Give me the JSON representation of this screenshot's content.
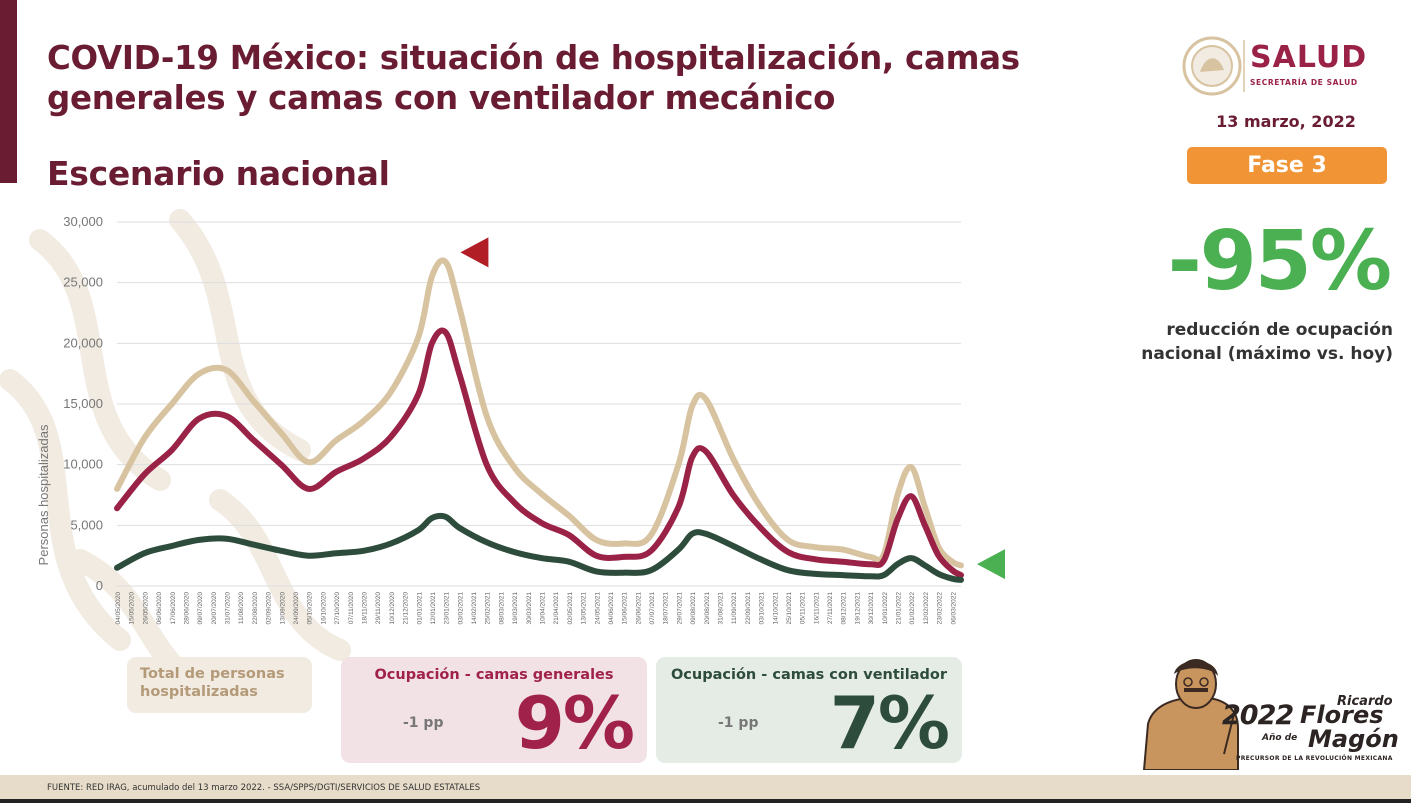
{
  "header": {
    "title_line1": "COVID-19 México: situación de hospitalización, camas",
    "title_line2": "generales y camas con ventilador mecánico",
    "subtitle": "Escenario nacional"
  },
  "logo": {
    "name": "SALUD",
    "subtitle": "SECRETARÍA DE SALUD",
    "icon": "mexican-coat-of-arms-icon"
  },
  "date": "13 marzo, 2022",
  "phase_badge": {
    "label": "Fase 3",
    "color": "#f19436"
  },
  "kpi": {
    "value": "-95%",
    "note_line1": "reducción de ocupación",
    "note_line2": "nacional (máximo vs. hoy)",
    "color": "#4bb052"
  },
  "cards": {
    "total": {
      "label_line1": "Total de personas",
      "label_line2": "hospitalizadas"
    },
    "general": {
      "title": "Ocupación - camas generales",
      "delta": "-1 pp",
      "value": "9%"
    },
    "ventilator": {
      "title": "Ocupación - camas con ventilador",
      "delta": "-1 pp",
      "value": "7%"
    }
  },
  "commemorative": {
    "year": "2022",
    "ano_de": "Año de",
    "first_name": "Ricardo",
    "surname1": "Flores",
    "surname2": "Magón",
    "subtitle": "PRECURSOR DE LA REVOLUCIÓN MEXICANA"
  },
  "footer": {
    "source": "FUENTE: RED IRAG, acumulado del 13 marzo 2022. -  SSA/SPPS/DGTI/SERVICIOS DE SALUD ESTATALES"
  },
  "chart_data": {
    "type": "line",
    "title": "",
    "ylabel": "Personas hospitalizadas",
    "xlabel": "",
    "ylim": [
      0,
      30000
    ],
    "y_ticks": [
      "0",
      "5,000",
      "10,000",
      "15,000",
      "20,000",
      "25,000",
      "30,000"
    ],
    "grid": true,
    "legend": "none",
    "x_tick_labels": [
      "04/05/2020",
      "15/05/2020",
      "26/05/2020",
      "06/06/2020",
      "17/06/2020",
      "28/06/2020",
      "09/07/2020",
      "20/07/2020",
      "31/07/2020",
      "11/08/2020",
      "22/08/2020",
      "02/09/2020",
      "13/09/2020",
      "24/09/2020",
      "05/10/2020",
      "16/10/2020",
      "27/10/2020",
      "07/11/2020",
      "18/11/2020",
      "29/11/2020",
      "10/12/2020",
      "21/12/2020",
      "01/01/2021",
      "12/01/2021",
      "23/01/2021",
      "03/02/2021",
      "14/02/2021",
      "25/02/2021",
      "08/03/2021",
      "19/03/2021",
      "30/03/2021",
      "10/04/2021",
      "21/04/2021",
      "02/05/2021",
      "13/05/2021",
      "24/05/2021",
      "04/06/2021",
      "15/06/2021",
      "26/06/2021",
      "07/07/2021",
      "18/07/2021",
      "29/07/2021",
      "09/08/2021",
      "20/08/2021",
      "31/08/2021",
      "11/09/2021",
      "22/09/2021",
      "03/10/2021",
      "14/10/2021",
      "25/10/2021",
      "05/11/2021",
      "16/11/2021",
      "27/11/2021",
      "08/12/2021",
      "19/12/2021",
      "30/12/2021",
      "10/01/2022",
      "21/01/2022",
      "01/02/2022",
      "12/02/2022",
      "23/02/2022",
      "06/03/2022"
    ],
    "x": [
      "04/05/2020",
      "26/05/2020",
      "17/06/2020",
      "09/07/2020",
      "31/07/2020",
      "22/08/2020",
      "13/09/2020",
      "05/10/2020",
      "27/10/2020",
      "18/11/2020",
      "10/12/2020",
      "01/01/2021",
      "12/01/2021",
      "23/01/2021",
      "03/02/2021",
      "25/02/2021",
      "19/03/2021",
      "10/04/2021",
      "02/05/2021",
      "24/05/2021",
      "15/06/2021",
      "07/07/2021",
      "29/07/2021",
      "09/08/2021",
      "20/08/2021",
      "11/09/2021",
      "03/10/2021",
      "25/10/2021",
      "16/11/2021",
      "08/12/2021",
      "30/12/2021",
      "10/01/2022",
      "21/01/2022",
      "01/02/2022",
      "12/02/2022",
      "23/02/2022",
      "06/03/2022",
      "13/03/2022"
    ],
    "series": [
      {
        "color": "#d8c3a0",
        "values": [
          8000,
          12200,
          15000,
          17500,
          17800,
          15200,
          12600,
          10200,
          12000,
          13600,
          16000,
          20500,
          25500,
          26700,
          23000,
          14000,
          9800,
          7600,
          5800,
          3800,
          3500,
          4200,
          10000,
          14800,
          15400,
          10500,
          6500,
          3800,
          3200,
          3000,
          2400,
          2600,
          7500,
          9800,
          6500,
          3200,
          2000,
          1700
        ]
      },
      {
        "color": "#9b2247",
        "values": [
          6400,
          9200,
          11200,
          13800,
          14000,
          12000,
          10000,
          8000,
          9400,
          10500,
          12300,
          15800,
          20000,
          20900,
          17500,
          10000,
          6900,
          5200,
          4200,
          2500,
          2400,
          2900,
          6500,
          10600,
          11100,
          7500,
          4800,
          2800,
          2200,
          2000,
          1800,
          2100,
          5500,
          7400,
          5000,
          2500,
          1300,
          900
        ]
      },
      {
        "color": "#2e4c3b",
        "values": [
          1500,
          2700,
          3300,
          3800,
          3900,
          3400,
          2900,
          2500,
          2700,
          2900,
          3500,
          4600,
          5600,
          5700,
          4800,
          3600,
          2800,
          2300,
          2000,
          1200,
          1100,
          1300,
          3000,
          4300,
          4300,
          3300,
          2200,
          1300,
          1000,
          900,
          800,
          900,
          1800,
          2300,
          1700,
          1000,
          600,
          500
        ]
      }
    ],
    "markers": [
      {
        "shape": "triangle-left",
        "color": "#b11e25",
        "x": "22/01/2021",
        "y": 27500
      },
      {
        "shape": "triangle-left",
        "color": "#4bb052",
        "x": "13/03/2022",
        "y": 1800
      }
    ]
  }
}
